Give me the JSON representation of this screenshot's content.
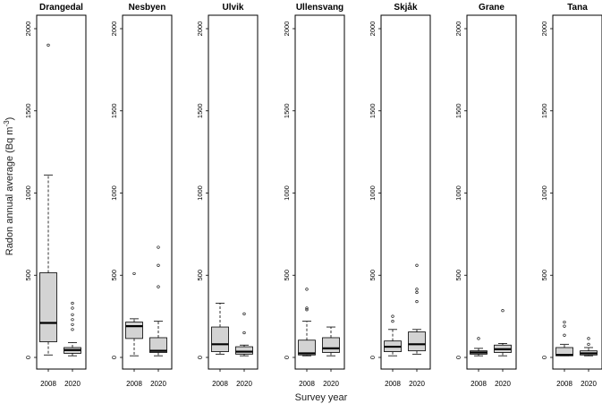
{
  "chart_data": {
    "type": "boxplot",
    "ylabel": "Radon annual average (Bq m",
    "ylabel_superscript": "-3",
    "ylabel_close": ")",
    "xlabel": "Survey year",
    "ylim": [
      0,
      2000
    ],
    "yticks": [
      "0",
      "500",
      "1000",
      "1500",
      "2000"
    ],
    "categories": [
      "2008",
      "2020"
    ],
    "colors": {
      "box_fill": "#d3d3d3",
      "stroke": "#000000",
      "background": "#ffffff"
    },
    "panels": [
      {
        "name": "Drangedal",
        "boxes": [
          {
            "year": "2008",
            "min": 15,
            "q1": 95,
            "median": 210,
            "q3": 515,
            "max": 1110,
            "outliers": [
              1900
            ]
          },
          {
            "year": "2020",
            "min": 10,
            "q1": 25,
            "median": 45,
            "q3": 60,
            "max": 90,
            "outliers": [
              170,
              200,
              230,
              260,
              300,
              330
            ]
          }
        ]
      },
      {
        "name": "Nesbyen",
        "boxes": [
          {
            "year": "2008",
            "min": 10,
            "q1": 115,
            "median": 190,
            "q3": 215,
            "max": 235,
            "outliers": [
              510
            ]
          },
          {
            "year": "2020",
            "min": 10,
            "q1": 30,
            "median": 40,
            "q3": 120,
            "max": 220,
            "outliers": [
              430,
              560,
              670
            ]
          }
        ]
      },
      {
        "name": "Ulvik",
        "boxes": [
          {
            "year": "2008",
            "min": 20,
            "q1": 35,
            "median": 80,
            "q3": 185,
            "max": 330,
            "outliers": []
          },
          {
            "year": "2020",
            "min": 10,
            "q1": 20,
            "median": 35,
            "q3": 65,
            "max": 75,
            "outliers": [
              150,
              265
            ]
          }
        ]
      },
      {
        "name": "Ullensvang",
        "boxes": [
          {
            "year": "2008",
            "min": 10,
            "q1": 15,
            "median": 25,
            "q3": 105,
            "max": 220,
            "outliers": [
              290,
              300,
              415
            ]
          },
          {
            "year": "2020",
            "min": 10,
            "q1": 30,
            "median": 55,
            "q3": 120,
            "max": 185,
            "outliers": []
          }
        ]
      },
      {
        "name": "Skjåk",
        "boxes": [
          {
            "year": "2008",
            "min": 10,
            "q1": 35,
            "median": 65,
            "q3": 100,
            "max": 170,
            "outliers": [
              220,
              250
            ]
          },
          {
            "year": "2020",
            "min": 20,
            "q1": 40,
            "median": 80,
            "q3": 155,
            "max": 170,
            "outliers": [
              340,
              395,
              415,
              560
            ]
          }
        ]
      },
      {
        "name": "Grane",
        "boxes": [
          {
            "year": "2008",
            "min": 10,
            "q1": 20,
            "median": 30,
            "q3": 40,
            "max": 55,
            "outliers": [
              115
            ]
          },
          {
            "year": "2020",
            "min": 10,
            "q1": 30,
            "median": 50,
            "q3": 75,
            "max": 85,
            "outliers": [
              285
            ]
          }
        ]
      },
      {
        "name": "Tana",
        "boxes": [
          {
            "year": "2008",
            "min": 10,
            "q1": 10,
            "median": 15,
            "q3": 60,
            "max": 80,
            "outliers": [
              135,
              190,
              215
            ]
          },
          {
            "year": "2020",
            "min": 10,
            "q1": 15,
            "median": 25,
            "q3": 40,
            "max": 60,
            "outliers": [
              80,
              115
            ]
          }
        ]
      }
    ]
  }
}
